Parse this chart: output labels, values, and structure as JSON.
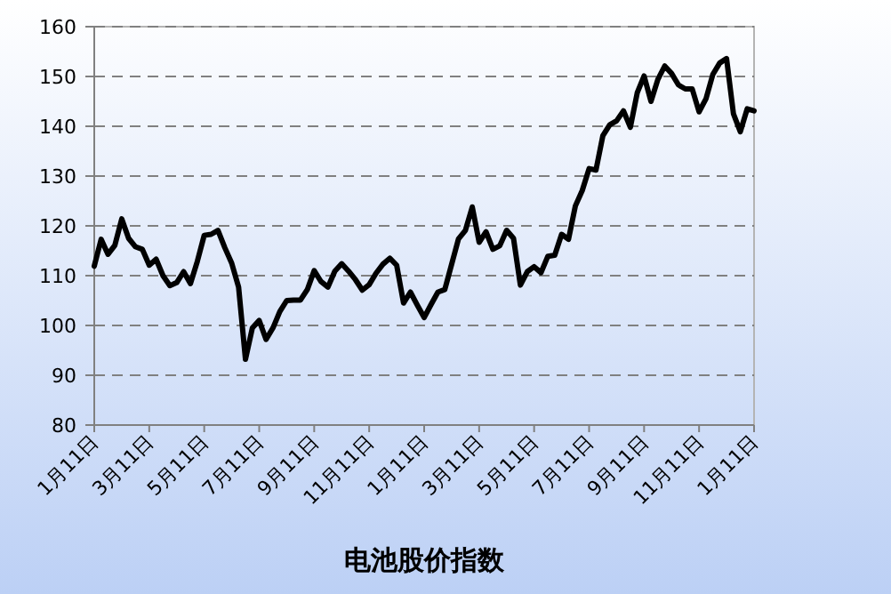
{
  "chart_data": {
    "type": "line",
    "xlabel": "电池股价指数",
    "color": "#000000",
    "categories": [
      "1月11日",
      null,
      null,
      null,
      null,
      null,
      null,
      null,
      "3月11日",
      null,
      null,
      null,
      null,
      null,
      null,
      null,
      "5月11日",
      null,
      null,
      null,
      null,
      null,
      null,
      null,
      "7月11日",
      null,
      null,
      null,
      null,
      null,
      null,
      null,
      "9月11日",
      null,
      null,
      null,
      null,
      null,
      null,
      null,
      "11月11日",
      null,
      null,
      null,
      null,
      null,
      null,
      null,
      "1月11日",
      null,
      null,
      null,
      null,
      null,
      null,
      null,
      "3月11日",
      null,
      null,
      null,
      null,
      null,
      null,
      null,
      "5月11日",
      null,
      null,
      null,
      null,
      null,
      null,
      null,
      "7月11日",
      null,
      null,
      null,
      null,
      null,
      null,
      null,
      "9月11日",
      null,
      null,
      null,
      null,
      null,
      null,
      null,
      "11月11日",
      null,
      null,
      null,
      null,
      null,
      null,
      null,
      "1月11日"
    ],
    "values": [
      111.9,
      117.3,
      114.3,
      116.1,
      121.4,
      117.5,
      115.8,
      115.3,
      112.1,
      113.3,
      110,
      108,
      108.6,
      110.8,
      108.4,
      112.9,
      118.1,
      118.3,
      119.1,
      115.6,
      112.5,
      107.7,
      93.2,
      99.5,
      101,
      97.2,
      99.5,
      102.8,
      105,
      105.1,
      105.1,
      107.2,
      111,
      108.8,
      107.7,
      110.9,
      112.4,
      110.9,
      109.2,
      107.1,
      108.2,
      110.5,
      112.3,
      113.5,
      112.1,
      104.5,
      106.7,
      104.1,
      101.6,
      104.2,
      106.7,
      107.2,
      112.3,
      117.4,
      119.1,
      123.8,
      116.7,
      118.8,
      115.3,
      116,
      119.1,
      117.5,
      108.1,
      110.8,
      111.8,
      110.6,
      113.9,
      114.1,
      118.3,
      117.3,
      124,
      127.1,
      131.5,
      131.2,
      138.1,
      140.3,
      141.1,
      143.1,
      139.8,
      146.7,
      150.1,
      145,
      149.4,
      152.1,
      150.6,
      148.3,
      147.5,
      147.5,
      142.9,
      145.5,
      150.4,
      152.7,
      153.6,
      142.5,
      138.9,
      143.5,
      143.1
    ],
    "ylim": [
      80,
      160
    ],
    "yticks": [
      80,
      90,
      100,
      110,
      120,
      130,
      140,
      150,
      160
    ],
    "grid": "y"
  }
}
